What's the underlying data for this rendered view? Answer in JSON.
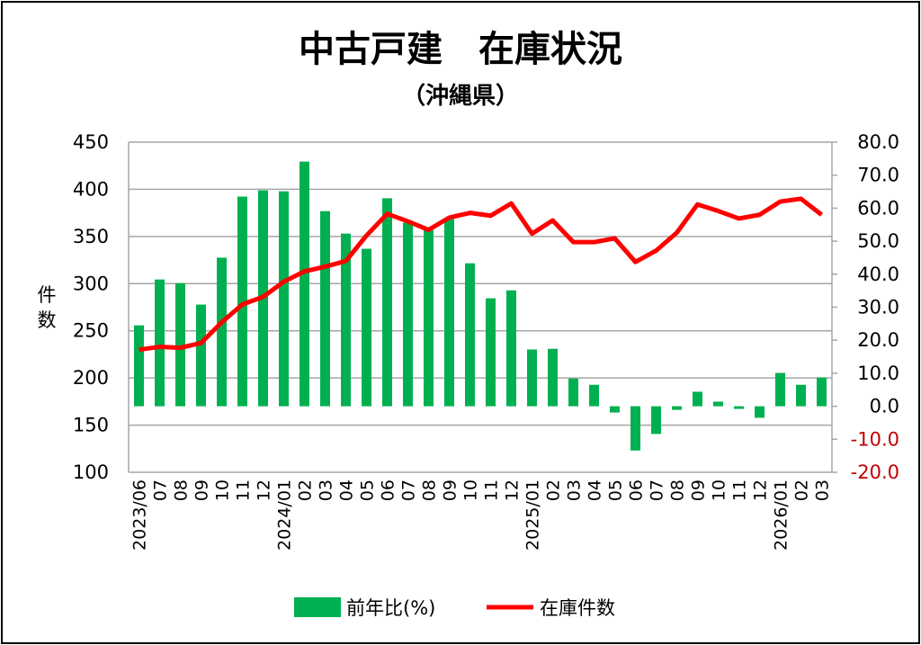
{
  "chart_data": {
    "type": "bar+line",
    "title": "中古戸建　在庫状況",
    "subtitle": "（沖縄県）",
    "ylabel": "件数",
    "ylabel_right": "",
    "xlabel": "",
    "categories": [
      "2023/06",
      "07",
      "08",
      "09",
      "10",
      "11",
      "12",
      "2024/01",
      "02",
      "03",
      "04",
      "05",
      "06",
      "07",
      "08",
      "09",
      "10",
      "11",
      "12",
      "2025/01",
      "02",
      "03",
      "04",
      "05",
      "06",
      "07",
      "08",
      "09",
      "10",
      "11",
      "12",
      "2026/01",
      "02",
      "03"
    ],
    "series": [
      {
        "name": "前年比(%)",
        "type": "bar",
        "axis": "right",
        "color": "#00b050",
        "values": [
          24.5,
          38.4,
          37.3,
          30.8,
          45.0,
          63.5,
          65.4,
          65.1,
          74.1,
          59.1,
          52.3,
          47.7,
          63.0,
          55.6,
          53.4,
          56.7,
          43.3,
          32.7,
          35.1,
          17.2,
          17.4,
          8.4,
          6.5,
          -1.9,
          -13.4,
          -8.4,
          -1.1,
          4.4,
          1.4,
          -0.8,
          -3.5,
          10.1,
          6.5,
          8.7
        ]
      },
      {
        "name": "在庫件数",
        "type": "line",
        "axis": "left",
        "color": "#ff0000",
        "values": [
          230,
          233,
          232,
          237,
          259,
          278,
          286,
          302,
          313,
          318,
          324,
          351,
          374,
          366,
          357,
          370,
          375,
          372,
          385,
          353,
          367,
          344,
          344,
          348,
          323,
          335,
          354,
          384,
          377,
          369,
          373,
          387,
          390,
          373
        ]
      }
    ],
    "ylim": [
      100,
      450
    ],
    "yticks": [
      "450",
      "400",
      "350",
      "300",
      "250",
      "200",
      "150",
      "100"
    ],
    "ylim_right": [
      -20,
      80
    ],
    "yticks_right": [
      "80.0",
      "70.0",
      "60.0",
      "50.0",
      "40.0",
      "30.0",
      "20.0",
      "10.0",
      "0.0",
      "-10.0",
      "-20.0"
    ],
    "negative_tick_color": "#c00000",
    "grid": true,
    "legend": {
      "position": "bottom",
      "items": [
        "前年比(%)",
        "在庫件数"
      ]
    }
  }
}
